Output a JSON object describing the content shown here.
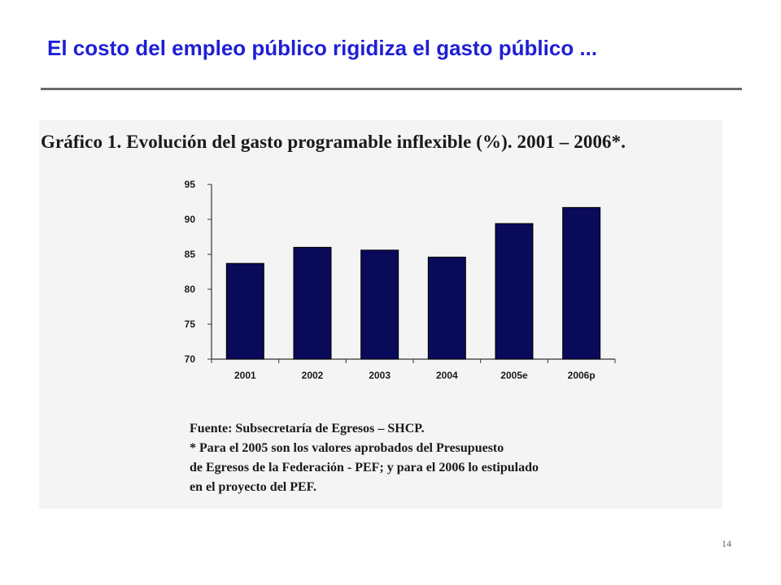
{
  "slide": {
    "title": "El costo del empleo público rigidiza el gasto público ...",
    "page_number": "14"
  },
  "colors": {
    "title": "#1f1fd6",
    "bar_fill": "#0a0a5a",
    "panel_bg": "#f4f4f4"
  },
  "figure": {
    "caption": "Gráfico 1. Evolución del gasto programable inflexible (%).  2001 – 2006*.",
    "notes": [
      "Fuente: Subsecretaría de Egresos – SHCP.",
      "* Para el 2005 son los valores aprobados del Presupuesto",
      "de Egresos de la Federación - PEF; y para el 2006 lo estipulado",
      "en el proyecto del PEF."
    ]
  },
  "chart_data": {
    "type": "bar",
    "title": "",
    "xlabel": "",
    "ylabel": "",
    "categories": [
      "2001",
      "2002",
      "2003",
      "2004",
      "2005e",
      "2006p"
    ],
    "values": [
      83.7,
      86.0,
      85.6,
      84.6,
      89.4,
      91.7
    ],
    "ylim": [
      70,
      95
    ],
    "yticks": [
      70,
      75,
      80,
      85,
      90,
      95
    ],
    "grid": false,
    "legend": "none"
  }
}
